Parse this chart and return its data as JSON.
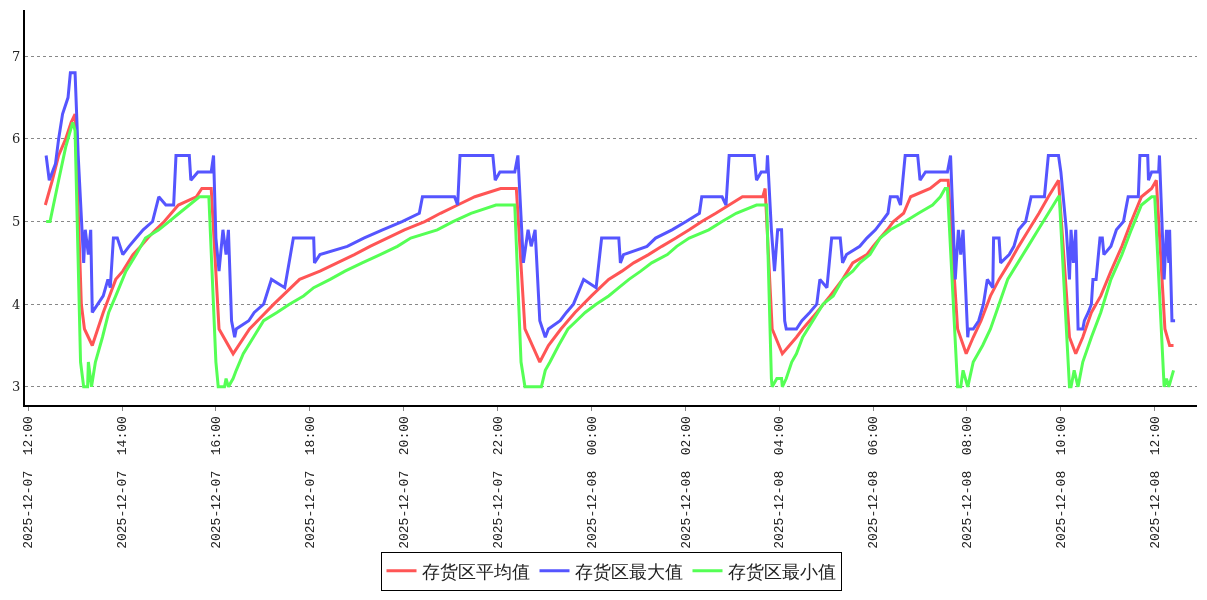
{
  "chart_data": {
    "type": "line",
    "legend": "bottom",
    "grid": "y",
    "marker": "none",
    "line_style": "solid",
    "xlim": [
      "2025-12-07T11:56",
      "2025-12-08T12:54"
    ],
    "xticks": [
      {
        "value": "2025-12-07T12:00",
        "label": "2025-12-07  12:00"
      },
      {
        "value": "2025-12-07T14:00",
        "label": "2025-12-07  14:00"
      },
      {
        "value": "2025-12-07T16:00",
        "label": "2025-12-07  16:00"
      },
      {
        "value": "2025-12-07T18:00",
        "label": "2025-12-07  18:00"
      },
      {
        "value": "2025-12-07T20:00",
        "label": "2025-12-07  20:00"
      },
      {
        "value": "2025-12-07T22:00",
        "label": "2025-12-07  22:00"
      },
      {
        "value": "2025-12-08T00:00",
        "label": "2025-12-08  00:00"
      },
      {
        "value": "2025-12-08T02:00",
        "label": "2025-12-08  02:00"
      },
      {
        "value": "2025-12-08T04:00",
        "label": "2025-12-08  04:00"
      },
      {
        "value": "2025-12-08T06:00",
        "label": "2025-12-08  06:00"
      },
      {
        "value": "2025-12-08T08:00",
        "label": "2025-12-08  08:00"
      },
      {
        "value": "2025-12-08T10:00",
        "label": "2025-12-08  10:00"
      },
      {
        "value": "2025-12-08T12:00",
        "label": "2025-12-08  12:00"
      }
    ],
    "ylim": [
      2.78,
      7.56
    ],
    "yticks": [
      3,
      4,
      5,
      6,
      7
    ],
    "series": [
      {
        "name": "存货区平均值",
        "color": "#ff5555",
        "x": [
          "2025-12-07T12:22",
          "2025-12-07T12:31",
          "2025-12-07T12:39",
          "2025-12-07T12:48",
          "2025-12-07T12:55",
          "2025-12-07T13:00",
          "2025-12-07T13:08",
          "2025-12-07T13:12",
          "2025-12-07T13:17",
          "2025-12-07T13:22",
          "2025-12-07T13:29",
          "2025-12-07T13:36",
          "2025-12-07T13:44",
          "2025-12-07T13:52",
          "2025-12-07T14:01",
          "2025-12-07T14:14",
          "2025-12-07T14:24",
          "2025-12-07T14:33",
          "2025-12-07T14:43",
          "2025-12-07T14:54",
          "2025-12-07T15:03",
          "2025-12-07T15:12",
          "2025-12-07T15:35",
          "2025-12-07T15:42",
          "2025-12-07T15:54",
          "2025-12-07T16:04",
          "2025-12-07T16:22",
          "2025-12-07T16:43",
          "2025-12-07T17:14",
          "2025-12-07T17:47",
          "2025-12-07T18:13",
          "2025-12-07T18:35",
          "2025-12-07T18:57",
          "2025-12-07T19:17",
          "2025-12-07T19:39",
          "2025-12-07T20:01",
          "2025-12-07T20:27",
          "2025-12-07T20:47",
          "2025-12-07T21:09",
          "2025-12-07T21:31",
          "2025-12-07T22:04",
          "2025-12-07T22:24",
          "2025-12-07T22:35",
          "2025-12-07T22:54",
          "2025-12-07T23:05",
          "2025-12-07T23:21",
          "2025-12-07T23:39",
          "2025-12-08T00:00",
          "2025-12-08T00:22",
          "2025-12-08T00:39",
          "2025-12-08T00:54",
          "2025-12-08T01:13",
          "2025-12-08T01:30",
          "2025-12-08T01:48",
          "2025-12-08T02:05",
          "2025-12-08T02:21",
          "2025-12-08T02:39",
          "2025-12-08T02:56",
          "2025-12-08T03:13",
          "2025-12-08T03:39",
          "2025-12-08T03:42",
          "2025-12-08T03:51",
          "2025-12-08T04:04",
          "2025-12-08T04:13",
          "2025-12-08T04:22",
          "2025-12-08T04:30",
          "2025-12-08T04:48",
          "2025-12-08T05:05",
          "2025-12-08T05:21",
          "2025-12-08T05:34",
          "2025-12-08T05:52",
          "2025-12-08T06:00",
          "2025-12-08T06:09",
          "2025-12-08T06:18",
          "2025-12-08T06:26",
          "2025-12-08T06:39",
          "2025-12-08T06:48",
          "2025-12-08T07:13",
          "2025-12-08T07:26",
          "2025-12-08T07:36",
          "2025-12-08T07:48",
          "2025-12-08T07:59",
          "2025-12-08T08:08",
          "2025-12-08T08:18",
          "2025-12-08T08:30",
          "2025-12-08T08:41",
          "2025-12-08T08:54",
          "2025-12-08T09:06",
          "2025-12-08T09:19",
          "2025-12-08T09:32",
          "2025-12-08T09:44",
          "2025-12-08T09:57",
          "2025-12-08T10:11",
          "2025-12-08T10:19",
          "2025-12-08T10:28",
          "2025-12-08T10:39",
          "2025-12-08T10:51",
          "2025-12-08T11:04",
          "2025-12-08T11:18",
          "2025-12-08T11:30",
          "2025-12-08T11:43",
          "2025-12-08T11:56",
          "2025-12-08T12:02",
          "2025-12-08T12:13",
          "2025-12-08T12:19",
          "2025-12-08T12:24"
        ],
        "values": [
          5.2,
          5.5,
          5.8,
          6.0,
          6.2,
          6.3,
          4.0,
          3.7,
          3.6,
          3.5,
          3.7,
          3.9,
          4.1,
          4.3,
          4.4,
          4.6,
          4.7,
          4.8,
          4.9,
          5.0,
          5.1,
          5.2,
          5.3,
          5.4,
          5.4,
          3.7,
          3.4,
          3.7,
          4.0,
          4.3,
          4.4,
          4.5,
          4.6,
          4.7,
          4.8,
          4.9,
          5.0,
          5.1,
          5.2,
          5.3,
          5.4,
          5.4,
          3.7,
          3.3,
          3.5,
          3.7,
          3.9,
          4.1,
          4.3,
          4.4,
          4.5,
          4.6,
          4.7,
          4.8,
          4.9,
          5.0,
          5.1,
          5.2,
          5.3,
          5.3,
          5.4,
          3.7,
          3.4,
          3.5,
          3.6,
          3.7,
          3.9,
          4.1,
          4.3,
          4.5,
          4.6,
          4.7,
          4.8,
          4.9,
          5.0,
          5.1,
          5.3,
          5.4,
          5.5,
          5.5,
          3.7,
          3.4,
          3.6,
          3.8,
          4.1,
          4.3,
          4.5,
          4.7,
          4.9,
          5.1,
          5.3,
          5.5,
          3.6,
          3.4,
          3.6,
          3.9,
          4.1,
          4.4,
          4.7,
          5.0,
          5.3,
          5.4,
          5.5,
          3.7,
          3.5,
          3.5
        ]
      },
      {
        "name": "存货区最大值",
        "color": "#5555ff",
        "x": [
          "2025-12-07T12:23",
          "2025-12-07T12:27",
          "2025-12-07T12:35",
          "2025-12-07T12:39",
          "2025-12-07T12:44",
          "2025-12-07T12:51",
          "2025-12-07T12:54",
          "2025-12-07T13:00",
          "2025-12-07T13:04",
          "2025-12-07T13:11",
          "2025-12-07T13:13",
          "2025-12-07T13:17",
          "2025-12-07T13:20",
          "2025-12-07T13:22",
          "2025-12-07T13:29",
          "2025-12-07T13:36",
          "2025-12-07T13:42",
          "2025-12-07T13:45",
          "2025-12-07T13:49",
          "2025-12-07T13:54",
          "2025-12-07T14:01",
          "2025-12-07T14:09",
          "2025-12-07T14:18",
          "2025-12-07T14:27",
          "2025-12-07T14:39",
          "2025-12-07T14:47",
          "2025-12-07T14:56",
          "2025-12-07T15:06",
          "2025-12-07T15:09",
          "2025-12-07T15:26",
          "2025-12-07T15:28",
          "2025-12-07T15:37",
          "2025-12-07T15:54",
          "2025-12-07T15:57",
          "2025-12-07T16:00",
          "2025-12-07T16:04",
          "2025-12-07T16:09",
          "2025-12-07T16:13",
          "2025-12-07T16:16",
          "2025-12-07T16:20",
          "2025-12-07T16:24",
          "2025-12-07T16:26",
          "2025-12-07T16:42",
          "2025-12-07T16:49",
          "2025-12-07T17:01",
          "2025-12-07T17:11",
          "2025-12-07T17:28",
          "2025-12-07T17:39",
          "2025-12-07T18:05",
          "2025-12-07T18:06",
          "2025-12-07T18:13",
          "2025-12-07T18:48",
          "2025-12-07T19:09",
          "2025-12-07T19:33",
          "2025-12-07T19:58",
          "2025-12-07T20:20",
          "2025-12-07T20:24",
          "2025-12-07T21:05",
          "2025-12-07T21:09",
          "2025-12-07T21:12",
          "2025-12-07T21:54",
          "2025-12-07T21:57",
          "2025-12-07T22:03",
          "2025-12-07T22:22",
          "2025-12-07T22:26",
          "2025-12-07T22:33",
          "2025-12-07T22:39",
          "2025-12-07T22:43",
          "2025-12-07T22:48",
          "2025-12-07T22:54",
          "2025-12-07T23:01",
          "2025-12-07T23:05",
          "2025-12-07T23:20",
          "2025-12-07T23:28",
          "2025-12-07T23:37",
          "2025-12-07T23:50",
          "2025-12-08T00:06",
          "2025-12-08T00:13",
          "2025-12-08T00:35",
          "2025-12-08T00:37",
          "2025-12-08T00:41",
          "2025-12-08T01:11",
          "2025-12-08T01:22",
          "2025-12-08T01:43",
          "2025-12-08T02:01",
          "2025-12-08T02:18",
          "2025-12-08T02:21",
          "2025-12-08T02:47",
          "2025-12-08T02:52",
          "2025-12-08T02:56",
          "2025-12-08T03:28",
          "2025-12-08T03:31",
          "2025-12-08T03:37",
          "2025-12-08T03:44",
          "2025-12-08T03:45",
          "2025-12-08T03:50",
          "2025-12-08T03:54",
          "2025-12-08T03:58",
          "2025-12-08T04:03",
          "2025-12-08T04:07",
          "2025-12-08T04:09",
          "2025-12-08T04:22",
          "2025-12-08T04:29",
          "2025-12-08T04:39",
          "2025-12-08T04:48",
          "2025-12-08T04:52",
          "2025-12-08T05:01",
          "2025-12-08T05:07",
          "2025-12-08T05:18",
          "2025-12-08T05:21",
          "2025-12-08T05:26",
          "2025-12-08T05:43",
          "2025-12-08T05:52",
          "2025-12-08T06:03",
          "2025-12-08T06:11",
          "2025-12-08T06:19",
          "2025-12-08T06:22",
          "2025-12-08T06:31",
          "2025-12-08T06:35",
          "2025-12-08T06:41",
          "2025-12-08T06:57",
          "2025-12-08T07:00",
          "2025-12-08T07:07",
          "2025-12-08T07:35",
          "2025-12-08T07:39",
          "2025-12-08T07:45",
          "2025-12-08T07:49",
          "2025-12-08T07:52",
          "2025-12-08T07:55",
          "2025-12-08T08:01",
          "2025-12-08T08:02",
          "2025-12-08T08:08",
          "2025-12-08T08:15",
          "2025-12-08T08:21",
          "2025-12-08T08:26",
          "2025-12-08T08:33",
          "2025-12-08T08:34",
          "2025-12-08T08:41",
          "2025-12-08T08:43",
          "2025-12-08T08:54",
          "2025-12-08T09:00",
          "2025-12-08T09:06",
          "2025-12-08T09:15",
          "2025-12-08T09:22",
          "2025-12-08T09:39",
          "2025-12-08T09:44",
          "2025-12-08T09:57",
          "2025-12-08T10:00",
          "2025-12-08T10:07",
          "2025-12-08T10:11",
          "2025-12-08T10:13",
          "2025-12-08T10:16",
          "2025-12-08T10:19",
          "2025-12-08T10:22",
          "2025-12-08T10:28",
          "2025-12-08T10:30",
          "2025-12-08T10:35",
          "2025-12-08T10:39",
          "2025-12-08T10:41",
          "2025-12-08T10:45",
          "2025-12-08T10:50",
          "2025-12-08T10:53",
          "2025-12-08T10:55",
          "2025-12-08T11:04",
          "2025-12-08T11:11",
          "2025-12-08T11:20",
          "2025-12-08T11:26",
          "2025-12-08T11:39",
          "2025-12-08T11:41",
          "2025-12-08T11:51",
          "2025-12-08T11:52",
          "2025-12-08T11:56",
          "2025-12-08T12:05",
          "2025-12-08T12:06",
          "2025-12-08T12:12",
          "2025-12-08T12:15",
          "2025-12-08T12:18",
          "2025-12-08T12:19",
          "2025-12-08T12:22",
          "2025-12-08T12:26"
        ],
        "values": [
          5.8,
          5.5,
          5.7,
          6.0,
          6.3,
          6.5,
          6.8,
          6.8,
          5.8,
          4.5,
          4.9,
          4.6,
          4.9,
          3.9,
          4.0,
          4.1,
          4.3,
          4.2,
          4.8,
          4.8,
          4.6,
          4.7,
          4.8,
          4.9,
          5.0,
          5.3,
          5.2,
          5.2,
          5.8,
          5.8,
          5.5,
          5.6,
          5.6,
          5.8,
          4.8,
          4.4,
          4.9,
          4.6,
          4.9,
          3.8,
          3.6,
          3.7,
          3.8,
          3.9,
          4.0,
          4.3,
          4.2,
          4.8,
          4.8,
          4.5,
          4.6,
          4.7,
          4.8,
          4.9,
          5.0,
          5.1,
          5.3,
          5.3,
          5.2,
          5.8,
          5.8,
          5.5,
          5.6,
          5.6,
          5.8,
          4.5,
          4.9,
          4.7,
          4.9,
          3.8,
          3.6,
          3.7,
          3.8,
          3.9,
          4.0,
          4.3,
          4.2,
          4.8,
          4.8,
          4.5,
          4.6,
          4.7,
          4.8,
          4.9,
          5.0,
          5.1,
          5.3,
          5.3,
          5.2,
          5.8,
          5.8,
          5.5,
          5.6,
          5.6,
          5.8,
          4.9,
          4.4,
          4.9,
          4.9,
          3.8,
          3.7,
          3.7,
          3.8,
          3.9,
          4.0,
          4.3,
          4.2,
          4.8,
          4.8,
          4.5,
          4.6,
          4.7,
          4.8,
          4.9,
          5.0,
          5.1,
          5.3,
          5.3,
          5.2,
          5.8,
          5.8,
          5.5,
          5.6,
          5.6,
          5.8,
          4.3,
          4.9,
          4.6,
          4.9,
          3.6,
          3.7,
          3.7,
          3.8,
          4.0,
          4.3,
          4.2,
          4.8,
          4.8,
          4.5,
          4.6,
          4.7,
          4.9,
          5.0,
          5.3,
          5.3,
          5.8,
          5.8,
          5.6,
          4.9,
          4.3,
          4.9,
          4.5,
          4.9,
          3.7,
          3.7,
          3.8,
          3.9,
          4.0,
          4.3,
          4.3,
          4.8,
          4.8,
          4.6,
          4.7,
          4.9,
          5.0,
          5.3,
          5.3,
          5.8,
          5.8,
          5.5,
          5.6,
          5.6,
          5.8,
          4.3,
          4.9,
          4.5,
          4.9,
          3.8,
          3.8
        ]
      },
      {
        "name": "存货区最小值",
        "color": "#55ff55",
        "x": [
          "2025-12-07T12:23",
          "2025-12-07T12:28",
          "2025-12-07T12:39",
          "2025-12-07T12:48",
          "2025-12-07T12:57",
          "2025-12-07T13:00",
          "2025-12-07T13:07",
          "2025-12-07T13:11",
          "2025-12-07T13:16",
          "2025-12-07T13:17",
          "2025-12-07T13:21",
          "2025-12-07T13:26",
          "2025-12-07T13:35",
          "2025-12-07T13:43",
          "2025-12-07T13:52",
          "2025-12-07T14:05",
          "2025-12-07T14:18",
          "2025-12-07T14:30",
          "2025-12-07T14:47",
          "2025-12-07T15:00",
          "2025-12-07T15:13",
          "2025-12-07T15:26",
          "2025-12-07T15:39",
          "2025-12-07T15:51",
          "2025-12-07T16:00",
          "2025-12-07T16:03",
          "2025-12-07T16:11",
          "2025-12-07T16:13",
          "2025-12-07T16:16",
          "2025-12-07T16:22",
          "2025-12-07T16:26",
          "2025-12-07T16:35",
          "2025-12-07T16:48",
          "2025-12-07T17:01",
          "2025-12-07T17:18",
          "2025-12-07T17:34",
          "2025-12-07T17:52",
          "2025-12-07T18:05",
          "2025-12-07T18:26",
          "2025-12-07T18:45",
          "2025-12-07T19:07",
          "2025-12-07T19:30",
          "2025-12-07T19:52",
          "2025-12-07T20:09",
          "2025-12-07T20:43",
          "2025-12-07T21:03",
          "2025-12-07T21:26",
          "2025-12-07T21:58",
          "2025-12-07T22:22",
          "2025-12-07T22:30",
          "2025-12-07T22:35",
          "2025-12-07T22:56",
          "2025-12-07T23:01",
          "2025-12-07T23:07",
          "2025-12-07T23:18",
          "2025-12-07T23:30",
          "2025-12-07T23:41",
          "2025-12-07T23:52",
          "2025-12-08T00:06",
          "2025-12-08T00:22",
          "2025-12-08T00:35",
          "2025-12-08T00:48",
          "2025-12-08T01:03",
          "2025-12-08T01:17",
          "2025-12-08T01:37",
          "2025-12-08T01:49",
          "2025-12-08T02:05",
          "2025-12-08T02:30",
          "2025-12-08T02:47",
          "2025-12-08T03:05",
          "2025-12-08T03:31",
          "2025-12-08T03:44",
          "2025-12-08T03:50",
          "2025-12-08T03:51",
          "2025-12-08T03:57",
          "2025-12-08T04:03",
          "2025-12-08T04:04",
          "2025-12-08T04:09",
          "2025-12-08T04:16",
          "2025-12-08T04:22",
          "2025-12-08T04:30",
          "2025-12-08T04:43",
          "2025-12-08T04:56",
          "2025-12-08T05:09",
          "2025-12-08T05:21",
          "2025-12-08T05:34",
          "2025-12-08T05:43",
          "2025-12-08T05:56",
          "2025-12-08T06:09",
          "2025-12-08T06:22",
          "2025-12-08T06:41",
          "2025-12-08T06:58",
          "2025-12-08T07:16",
          "2025-12-08T07:26",
          "2025-12-08T07:32",
          "2025-12-08T07:35",
          "2025-12-08T07:48",
          "2025-12-08T07:52",
          "2025-12-08T07:55",
          "2025-12-08T08:01",
          "2025-12-08T08:08",
          "2025-12-08T08:20",
          "2025-12-08T08:30",
          "2025-12-08T08:41",
          "2025-12-08T08:52",
          "2025-12-08T09:05",
          "2025-12-08T09:18",
          "2025-12-08T09:31",
          "2025-12-08T09:44",
          "2025-12-08T09:57",
          "2025-12-08T09:58",
          "2025-12-08T10:11",
          "2025-12-08T10:13",
          "2025-12-08T10:17",
          "2025-12-08T10:22",
          "2025-12-08T10:28",
          "2025-12-08T10:39",
          "2025-12-08T10:51",
          "2025-12-08T11:04",
          "2025-12-08T11:18",
          "2025-12-08T11:30",
          "2025-12-08T11:43",
          "2025-12-08T11:56",
          "2025-12-08T12:00",
          "2025-12-08T12:12",
          "2025-12-08T12:15",
          "2025-12-08T12:18",
          "2025-12-08T12:24"
        ],
        "values": [
          5.0,
          5.0,
          5.5,
          5.9,
          6.2,
          6.1,
          3.3,
          3.0,
          3.0,
          3.3,
          3.0,
          3.3,
          3.6,
          3.9,
          4.1,
          4.4,
          4.6,
          4.8,
          4.9,
          5.0,
          5.1,
          5.2,
          5.3,
          5.3,
          3.3,
          3.0,
          3.0,
          3.1,
          3.0,
          3.1,
          3.2,
          3.4,
          3.6,
          3.8,
          3.9,
          4.0,
          4.1,
          4.2,
          4.3,
          4.4,
          4.5,
          4.6,
          4.7,
          4.8,
          4.9,
          5.0,
          5.1,
          5.2,
          5.2,
          3.3,
          3.0,
          3.0,
          3.2,
          3.3,
          3.5,
          3.7,
          3.8,
          3.9,
          4.0,
          4.1,
          4.2,
          4.3,
          4.4,
          4.5,
          4.6,
          4.7,
          4.8,
          4.9,
          5.0,
          5.1,
          5.2,
          5.2,
          3.1,
          3.0,
          3.1,
          3.1,
          3.0,
          3.1,
          3.3,
          3.4,
          3.6,
          3.8,
          4.0,
          4.1,
          4.3,
          4.4,
          4.5,
          4.6,
          4.8,
          4.9,
          5.0,
          5.1,
          5.2,
          5.3,
          5.4,
          5.4,
          3.0,
          3.0,
          3.2,
          3.0,
          3.3,
          3.5,
          3.7,
          4.0,
          4.3,
          4.5,
          4.7,
          4.9,
          5.1,
          5.3,
          5.3,
          3.0,
          3.0,
          3.2,
          3.0,
          3.3,
          3.6,
          3.9,
          4.3,
          4.6,
          4.9,
          5.2,
          5.3,
          5.3,
          3.0,
          3.1,
          3.0,
          3.2
        ]
      }
    ]
  }
}
